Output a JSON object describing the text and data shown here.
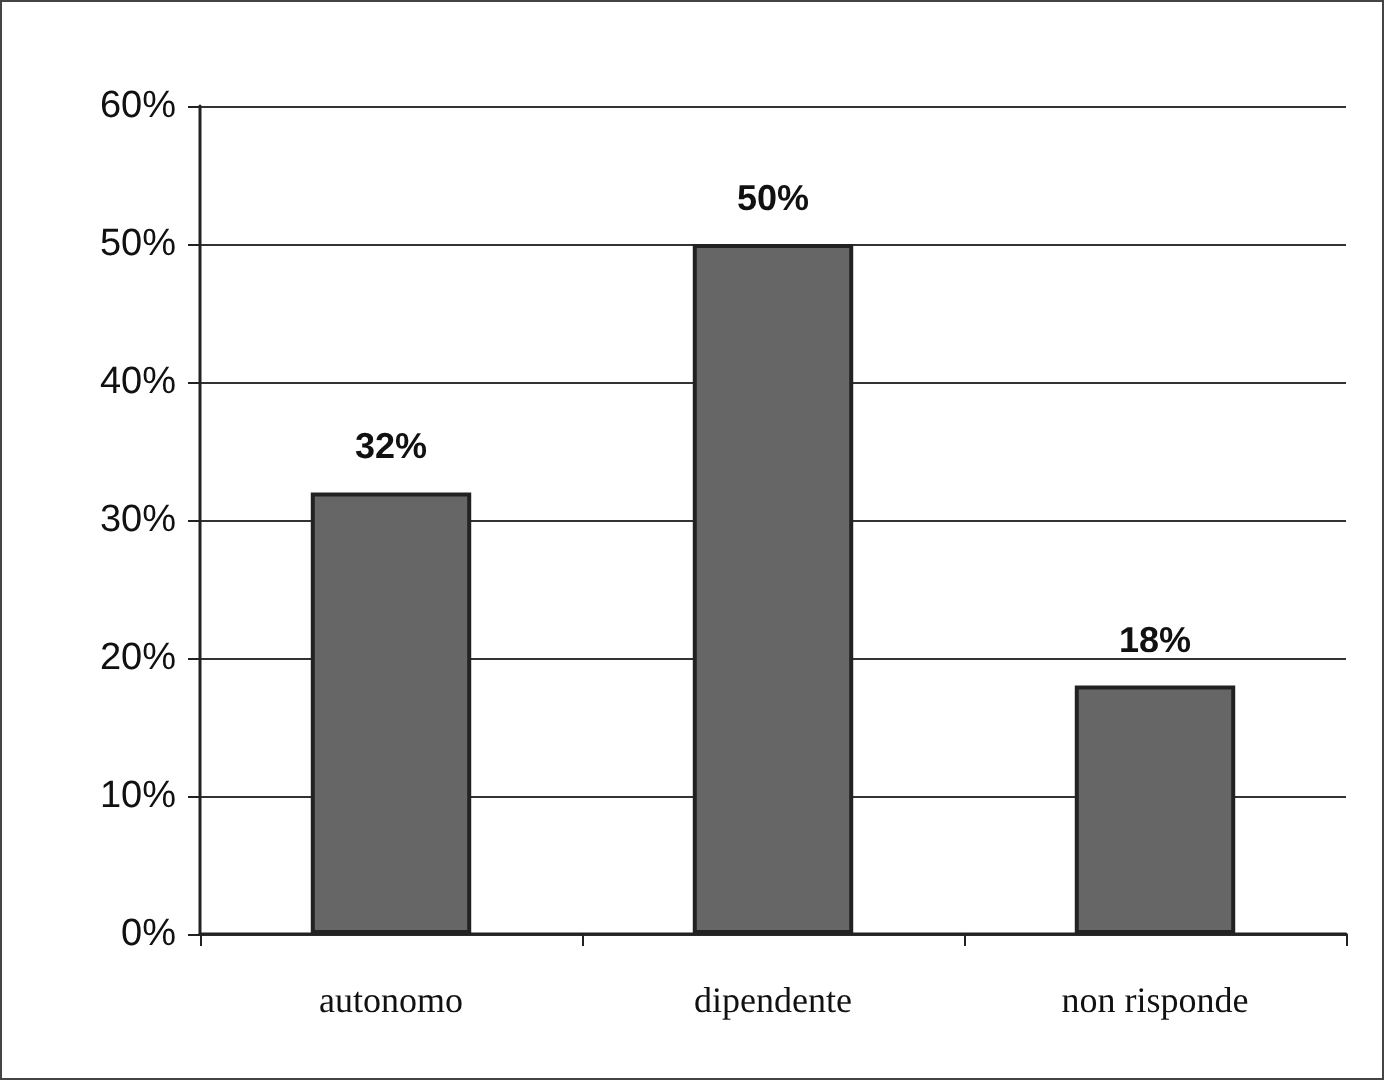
{
  "chart_data": {
    "type": "bar",
    "categories": [
      "autonomo",
      "dipendente",
      "non risponde"
    ],
    "values": [
      32,
      50,
      18
    ],
    "value_labels": [
      "32%",
      "50%",
      "18%"
    ],
    "color": "#666666",
    "ylim": [
      0,
      60
    ],
    "yticks": [
      {
        "value": 0,
        "label": "0%"
      },
      {
        "value": 10,
        "label": "10%"
      },
      {
        "value": 20,
        "label": "20%"
      },
      {
        "value": 30,
        "label": "30%"
      },
      {
        "value": 40,
        "label": "40%"
      },
      {
        "value": 50,
        "label": "50%"
      },
      {
        "value": 60,
        "label": "60%"
      }
    ],
    "grid": "y"
  }
}
